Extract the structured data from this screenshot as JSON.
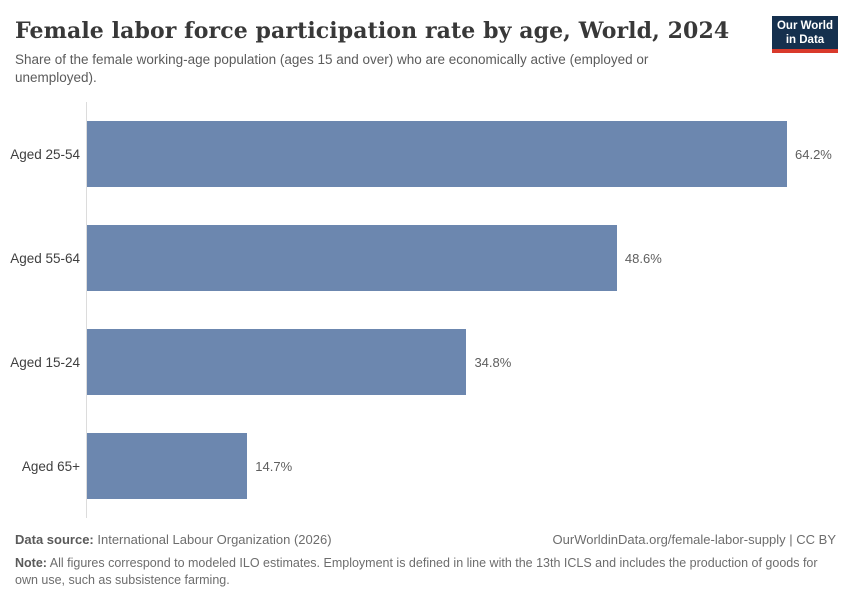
{
  "header": {
    "title": "Female labor force participation rate by age, World, 2024",
    "subtitle": "Share of the female working-age population (ages 15 and over) who are economically active (employed or unemployed).",
    "logo": {
      "line1": "Our World",
      "line2": "in Data",
      "bg_color": "#15304e",
      "accent_color": "#d93a2b"
    }
  },
  "chart_data": {
    "type": "bar",
    "orientation": "horizontal",
    "title": "Female labor force participation rate by age, World, 2024",
    "categories": [
      "Aged 25-54",
      "Aged 55-64",
      "Aged 15-24",
      "Aged 65+"
    ],
    "values": [
      64.2,
      48.6,
      34.8,
      14.7
    ],
    "value_labels": [
      "64.2%",
      "48.6%",
      "34.8%",
      "14.7%"
    ],
    "unit": "%",
    "bar_color": "#6c87af",
    "axis_color": "#dcdcdc",
    "grid": false,
    "legend": false,
    "xlim": [
      0,
      68.6
    ]
  },
  "footer": {
    "data_source_label": "Data source:",
    "data_source_value": "International Labour Organization (2026)",
    "attribution": "OurWorldinData.org/female-labor-supply | CC BY",
    "note_label": "Note:",
    "note_text": "All figures correspond to modeled ILO estimates. Employment is defined in line with the 13th ICLS and includes the production of goods for own use, such as subsistence farming."
  }
}
